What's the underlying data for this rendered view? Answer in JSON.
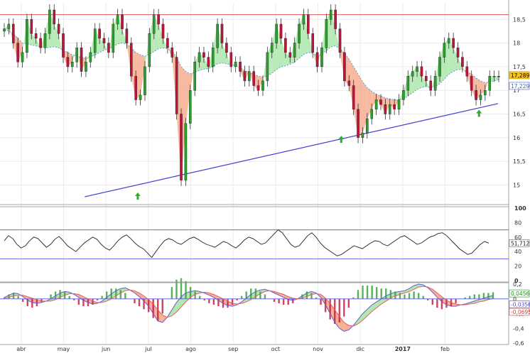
{
  "chart_data": [
    {
      "type": "candlestick",
      "panel": "price",
      "title": "",
      "ylim": [
        14.6,
        18.85
      ],
      "yticks": [
        "15",
        "15,5",
        "16",
        "16,5",
        "17",
        "17,5",
        "18",
        "18,5"
      ],
      "ytick_values": [
        15,
        15.5,
        16,
        16.5,
        17,
        17.5,
        18,
        18.5
      ],
      "last_price_label": "17,289",
      "moving_average_label": "17,229",
      "resistance_level": 18.6,
      "support_trendline": {
        "from": {
          "month_index": 2.0,
          "value": 14.75
        },
        "to": {
          "month_index": 11.75,
          "value": 16.72
        }
      },
      "close_series": [
        18.3,
        18.4,
        18.0,
        17.6,
        17.8,
        18.5,
        18.2,
        18.1,
        17.9,
        18.2,
        18.7,
        18.4,
        18.2,
        17.7,
        17.5,
        17.6,
        17.9,
        17.4,
        17.6,
        17.8,
        18.3,
        18.1,
        18.0,
        17.8,
        18.4,
        18.6,
        18.3,
        18.0,
        17.3,
        16.8,
        16.9,
        17.5,
        18.2,
        18.6,
        18.4,
        18.1,
        17.9,
        17.7,
        16.5,
        15.1,
        16.3,
        17.0,
        17.6,
        17.8,
        17.7,
        17.5,
        17.9,
        18.4,
        18.0,
        17.8,
        17.5,
        17.6,
        17.4,
        17.2,
        17.4,
        17.1,
        17.0,
        17.2,
        17.8,
        18.0,
        18.4,
        18.1,
        17.8,
        17.7,
        18.0,
        18.4,
        18.6,
        18.2,
        17.8,
        17.5,
        17.9,
        18.5,
        18.7,
        18.3,
        17.8,
        17.2,
        17.1,
        16.6,
        16.0,
        16.1,
        16.4,
        16.6,
        16.8,
        16.7,
        16.5,
        16.7,
        16.6,
        16.8,
        17.0,
        17.3,
        17.4,
        17.5,
        17.3,
        17.2,
        17.0,
        17.3,
        17.7,
        18.0,
        18.1,
        17.9,
        17.7,
        17.5,
        17.3,
        17.0,
        16.8,
        16.9,
        17.0,
        17.3,
        17.3,
        17.29
      ],
      "ma_series": [
        18.3,
        18.25,
        18.2,
        18.1,
        18.0,
        17.98,
        17.96,
        17.94,
        17.92,
        17.9,
        17.91,
        17.92,
        17.9,
        17.85,
        17.8,
        17.75,
        17.72,
        17.7,
        17.68,
        17.7,
        17.75,
        17.8,
        17.85,
        17.88,
        17.92,
        17.98,
        18.0,
        17.98,
        17.9,
        17.8,
        17.75,
        17.72,
        17.76,
        17.82,
        17.88,
        17.9,
        17.88,
        17.84,
        17.7,
        17.5,
        17.4,
        17.35,
        17.38,
        17.42,
        17.45,
        17.46,
        17.5,
        17.56,
        17.58,
        17.56,
        17.54,
        17.52,
        17.48,
        17.42,
        17.38,
        17.34,
        17.3,
        17.28,
        17.3,
        17.36,
        17.44,
        17.5,
        17.52,
        17.55,
        17.6,
        17.68,
        17.76,
        17.8,
        17.78,
        17.74,
        17.76,
        17.84,
        17.92,
        17.94,
        17.88,
        17.78,
        17.66,
        17.5,
        17.34,
        17.18,
        17.06,
        16.98,
        16.92,
        16.88,
        16.84,
        16.82,
        16.8,
        16.8,
        16.82,
        16.88,
        16.95,
        17.02,
        17.06,
        17.08,
        17.06,
        17.08,
        17.14,
        17.24,
        17.34,
        17.4,
        17.44,
        17.44,
        17.4,
        17.34,
        17.26,
        17.2,
        17.16,
        17.18,
        17.2,
        17.229
      ]
    },
    {
      "type": "line",
      "panel": "oscillator",
      "ylim": [
        0,
        100
      ],
      "yticks": [
        "0",
        "20",
        "40",
        "60",
        "80",
        "100"
      ],
      "ytick_values": [
        0,
        20,
        40,
        60,
        80,
        100
      ],
      "bands": [
        70,
        30
      ],
      "last_value_label": "51,712",
      "values": [
        55,
        62,
        58,
        50,
        45,
        48,
        55,
        60,
        58,
        52,
        46,
        50,
        57,
        61,
        55,
        48,
        44,
        40,
        46,
        52,
        56,
        60,
        57,
        50,
        45,
        42,
        48,
        55,
        60,
        63,
        58,
        52,
        47,
        44,
        38,
        32,
        40,
        48,
        55,
        58,
        56,
        52,
        50,
        54,
        58,
        60,
        57,
        53,
        50,
        48,
        46,
        50,
        54,
        52,
        48,
        45,
        50,
        56,
        60,
        58,
        54,
        50,
        52,
        58,
        64,
        70,
        66,
        58,
        50,
        46,
        48,
        55,
        62,
        66,
        60,
        52,
        46,
        42,
        38,
        34,
        36,
        40,
        44,
        48,
        46,
        44,
        48,
        52,
        55,
        54,
        50,
        48,
        52,
        56,
        60,
        62,
        58,
        54,
        50,
        52,
        56,
        60,
        62,
        65,
        66,
        62,
        56,
        50,
        44,
        40,
        36,
        38,
        44,
        50,
        54,
        51.7
      ]
    },
    {
      "type": "macd",
      "panel": "macd",
      "ylim": [
        -0.6,
        0.2
      ],
      "yticks": [
        "-0,6",
        "-0,4",
        "-0,2",
        "0",
        "0,2"
      ],
      "ytick_values": [
        -0.6,
        -0.4,
        -0.2,
        0,
        0.2
      ],
      "labels": [
        "0,0456",
        "-0,0356",
        "-0,0695"
      ],
      "macd": [
        0.02,
        0.05,
        0.08,
        0.07,
        0.03,
        -0.02,
        -0.05,
        -0.06,
        -0.05,
        -0.03,
        0.0,
        0.04,
        0.08,
        0.1,
        0.09,
        0.06,
        0.02,
        -0.02,
        -0.05,
        -0.07,
        -0.06,
        -0.03,
        0.02,
        0.07,
        0.11,
        0.14,
        0.15,
        0.12,
        0.08,
        0.03,
        -0.03,
        -0.1,
        -0.2,
        -0.3,
        -0.32,
        -0.25,
        -0.15,
        -0.05,
        0.03,
        0.08,
        0.1,
        0.11,
        0.1,
        0.08,
        0.05,
        0.02,
        -0.02,
        -0.06,
        -0.09,
        -0.1,
        -0.08,
        -0.04,
        0.01,
        0.06,
        0.1,
        0.12,
        0.13,
        0.11,
        0.08,
        0.05,
        0.02,
        -0.01,
        -0.02,
        0.0,
        0.04,
        0.08,
        0.1,
        0.08,
        0.02,
        -0.08,
        -0.2,
        -0.32,
        -0.4,
        -0.44,
        -0.42,
        -0.36,
        -0.28,
        -0.2,
        -0.14,
        -0.08,
        -0.04,
        0.0,
        0.04,
        0.07,
        0.09,
        0.1,
        0.11,
        0.14,
        0.18,
        0.2,
        0.19,
        0.15,
        0.09,
        0.02,
        -0.04,
        -0.08,
        -0.1,
        -0.1,
        -0.08,
        -0.07,
        -0.05,
        -0.03,
        -0.01,
        0.01,
        0.03,
        0.045
      ],
      "signal": [
        0.01,
        0.02,
        0.04,
        0.05,
        0.05,
        0.03,
        0.01,
        -0.01,
        -0.03,
        -0.03,
        -0.03,
        -0.01,
        0.02,
        0.05,
        0.07,
        0.07,
        0.06,
        0.03,
        0.0,
        -0.03,
        -0.05,
        -0.05,
        -0.03,
        0.0,
        0.04,
        0.08,
        0.11,
        0.12,
        0.11,
        0.08,
        0.04,
        -0.01,
        -0.07,
        -0.15,
        -0.22,
        -0.25,
        -0.23,
        -0.18,
        -0.11,
        -0.04,
        0.02,
        0.06,
        0.08,
        0.09,
        0.08,
        0.06,
        0.03,
        0.0,
        -0.03,
        -0.06,
        -0.07,
        -0.06,
        -0.04,
        -0.01,
        0.03,
        0.07,
        0.1,
        0.11,
        0.1,
        0.08,
        0.06,
        0.03,
        0.01,
        0.0,
        0.01,
        0.03,
        0.06,
        0.07,
        0.06,
        0.01,
        -0.06,
        -0.15,
        -0.24,
        -0.32,
        -0.36,
        -0.37,
        -0.34,
        -0.29,
        -0.23,
        -0.17,
        -0.12,
        -0.07,
        -0.03,
        0.01,
        0.04,
        0.06,
        0.08,
        0.1,
        0.13,
        0.16,
        0.17,
        0.16,
        0.13,
        0.08,
        0.03,
        -0.02,
        -0.05,
        -0.07,
        -0.08,
        -0.08,
        -0.07,
        -0.06,
        -0.04,
        -0.03,
        -0.01,
        0.0
      ]
    }
  ],
  "x_axis": {
    "labels": [
      "abr",
      "may",
      "jun",
      "jul",
      "ago",
      "sep",
      "oct",
      "nov",
      "dic",
      "2017",
      "feb"
    ],
    "month_index": [
      0.5,
      1.5,
      2.5,
      3.5,
      4.5,
      5.5,
      6.5,
      7.5,
      8.5,
      9.5,
      10.5
    ],
    "range": [
      0,
      12
    ]
  },
  "colors": {
    "up": "#2ca02c",
    "down": "#c0143c",
    "ma": "#5b9bd5",
    "fill_below": "#f5a98a",
    "fill_above": "#a8e6a8",
    "resistance": "#e15a5a",
    "trendline": "#4040d0",
    "band": "#6a6ae0",
    "oscillator": "#222222",
    "macd_line": "#6b5bd6",
    "signal_line": "#e06060",
    "last_price_bg": "#f5c518",
    "arrow": "#33aa33"
  },
  "arrows": [
    {
      "month_index": 3.25,
      "value": 14.75
    },
    {
      "month_index": 8.05,
      "value": 15.95
    },
    {
      "month_index": 11.3,
      "value": 16.5
    }
  ]
}
